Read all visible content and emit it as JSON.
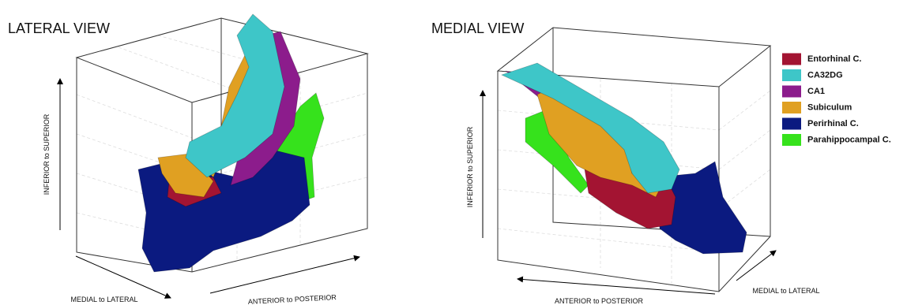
{
  "panels": [
    {
      "title": "LATERAL VIEW",
      "axes": {
        "vertical": "INFERIOR to SUPERIOR",
        "depth": "MEDIAL to LATERAL",
        "horizontal": "ANTERIOR  to POSTERIOR"
      }
    },
    {
      "title": "MEDIAL VIEW",
      "axes": {
        "vertical": "INFERIOR to SUPERIOR",
        "horizontal": "ANTERIOR to POSTERIOR",
        "depth": "MEDIAL to LATERAL"
      }
    }
  ],
  "legend": [
    {
      "label": "Entorhinal C.",
      "color": "#a31432"
    },
    {
      "label": "CA32DG",
      "color": "#3ec6c8"
    },
    {
      "label": "CA1",
      "color": "#8c1c8c"
    },
    {
      "label": "Subiculum",
      "color": "#e0a022"
    },
    {
      "label": "Perirhinal C.",
      "color": "#0b1a80"
    },
    {
      "label": "Parahippocampal C.",
      "color": "#36e21c"
    }
  ]
}
